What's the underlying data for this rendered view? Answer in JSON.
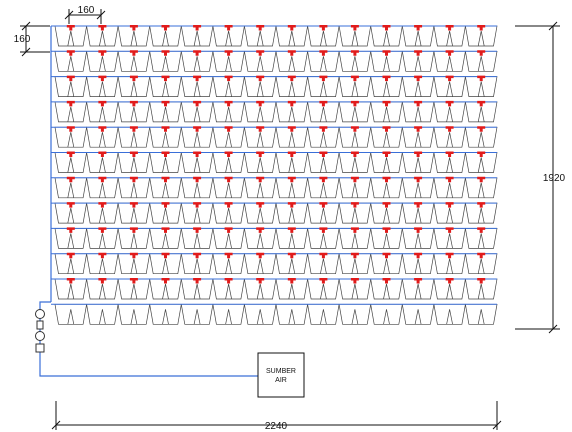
{
  "dimensions": {
    "top_spacing": "160",
    "left_spacing": "160",
    "total_height": "1920",
    "total_width": "2240"
  },
  "grid": {
    "rows": 12,
    "columns": 14
  },
  "water_source": {
    "label_line1": "SUMBER",
    "label_line2": "AIR"
  },
  "colors": {
    "pipe": "#3a6fd8",
    "emitter": "#e11b1b",
    "pot_outline": "#444444",
    "dimension_line": "#111111"
  }
}
